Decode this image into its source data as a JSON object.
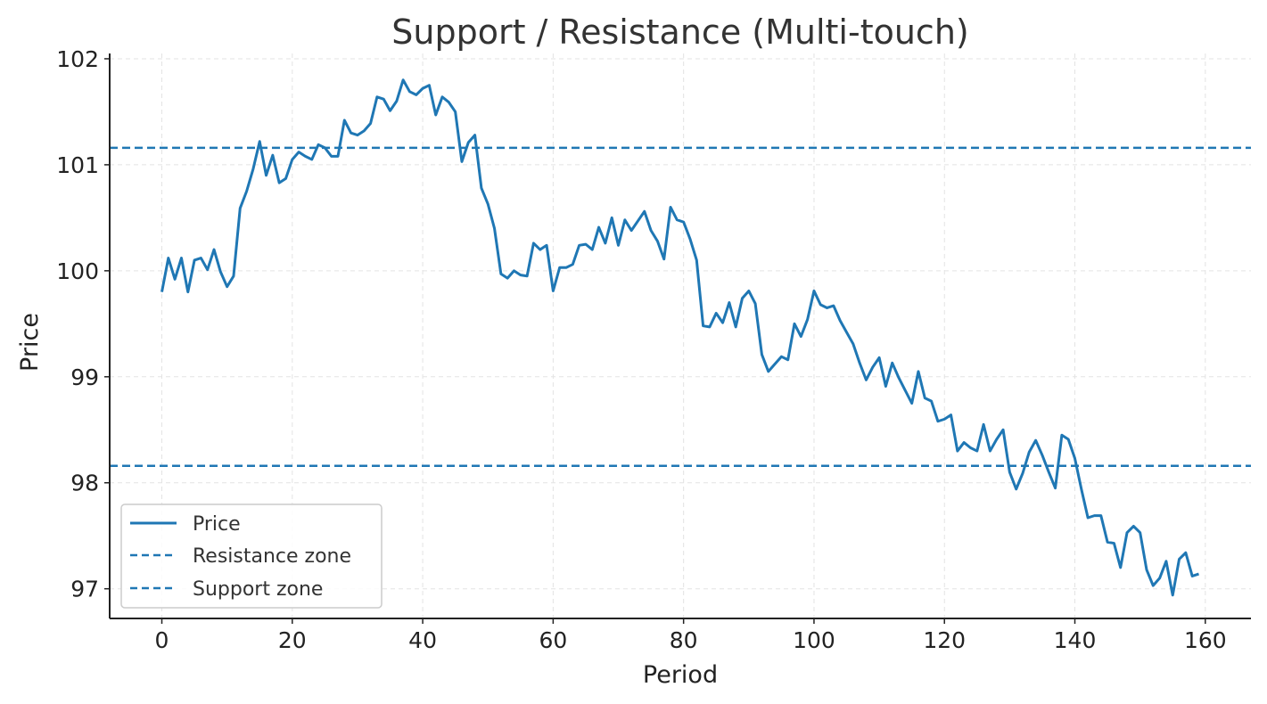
{
  "chart_data": {
    "type": "line",
    "title": "Support / Resistance (Multi-touch)",
    "xlabel": "Period",
    "ylabel": "Price",
    "xlim": [
      -8,
      167
    ],
    "ylim": [
      96.72,
      102.05
    ],
    "xticks": [
      0,
      20,
      40,
      60,
      80,
      100,
      120,
      140,
      160
    ],
    "yticks": [
      97,
      98,
      99,
      100,
      101,
      102
    ],
    "grid": true,
    "legend_position": "lower-left",
    "series": [
      {
        "name": "Price",
        "style": "solid",
        "color": "#1f77b4",
        "x": [
          0,
          1,
          2,
          3,
          4,
          5,
          6,
          7,
          8,
          9,
          10,
          11,
          12,
          13,
          14,
          15,
          16,
          17,
          18,
          19,
          20,
          21,
          22,
          23,
          24,
          25,
          26,
          27,
          28,
          29,
          30,
          31,
          32,
          33,
          34,
          35,
          36,
          37,
          38,
          39,
          40,
          41,
          42,
          43,
          44,
          45,
          46,
          47,
          48,
          49,
          50,
          51,
          52,
          53,
          54,
          55,
          56,
          57,
          58,
          59,
          60,
          61,
          62,
          63,
          64,
          65,
          66,
          67,
          68,
          69,
          70,
          71,
          72,
          73,
          74,
          75,
          76,
          77,
          78,
          79,
          80,
          81,
          82,
          83,
          84,
          85,
          86,
          87,
          88,
          89,
          90,
          91,
          92,
          93,
          94,
          95,
          96,
          97,
          98,
          99,
          100,
          101,
          102,
          103,
          104,
          105,
          106,
          107,
          108,
          109,
          110,
          111,
          112,
          113,
          114,
          115,
          116,
          117,
          118,
          119,
          120,
          121,
          122,
          123,
          124,
          125,
          126,
          127,
          128,
          129,
          130,
          131,
          132,
          133,
          134,
          135,
          136,
          137,
          138,
          139,
          140,
          141,
          142,
          143,
          144,
          145,
          146,
          147,
          148,
          149,
          150,
          151,
          152,
          153,
          154,
          155,
          156,
          157,
          158,
          159
        ],
        "y": [
          99.8,
          100.12,
          99.92,
          100.12,
          99.8,
          100.1,
          100.12,
          100.01,
          100.2,
          99.99,
          99.85,
          99.95,
          100.59,
          100.75,
          100.96,
          101.22,
          100.9,
          101.09,
          100.83,
          100.87,
          101.05,
          101.12,
          101.08,
          101.05,
          101.19,
          101.16,
          101.08,
          101.08,
          101.42,
          101.3,
          101.28,
          101.32,
          101.39,
          101.64,
          101.62,
          101.51,
          101.6,
          101.8,
          101.69,
          101.66,
          101.72,
          101.75,
          101.47,
          101.64,
          101.59,
          101.5,
          101.03,
          101.21,
          101.28,
          100.78,
          100.63,
          100.4,
          99.97,
          99.93,
          100.0,
          99.96,
          99.95,
          100.26,
          100.2,
          100.24,
          99.81,
          100.03,
          100.03,
          100.06,
          100.24,
          100.25,
          100.2,
          100.41,
          100.26,
          100.5,
          100.24,
          100.48,
          100.38,
          100.47,
          100.56,
          100.38,
          100.28,
          100.11,
          100.6,
          100.48,
          100.46,
          100.3,
          100.1,
          99.48,
          99.47,
          99.6,
          99.51,
          99.7,
          99.47,
          99.74,
          99.81,
          99.69,
          99.21,
          99.05,
          99.12,
          99.19,
          99.16,
          99.5,
          99.38,
          99.54,
          99.81,
          99.68,
          99.65,
          99.67,
          99.53,
          99.42,
          99.31,
          99.13,
          98.97,
          99.09,
          99.18,
          98.91,
          99.13,
          98.99,
          98.87,
          98.75,
          99.05,
          98.8,
          98.77,
          98.58,
          98.6,
          98.64,
          98.3,
          98.38,
          98.33,
          98.3,
          98.55,
          98.3,
          98.41,
          98.5,
          98.1,
          97.94,
          98.09,
          98.29,
          98.4,
          98.26,
          98.1,
          97.95,
          98.45,
          98.41,
          98.23,
          97.94,
          97.67,
          97.69,
          97.69,
          97.44,
          97.43,
          97.2,
          97.53,
          97.59,
          97.53,
          97.18,
          97.03,
          97.1,
          97.26,
          96.94,
          97.28,
          97.34,
          97.12,
          97.14
        ]
      },
      {
        "name": "Resistance zone",
        "style": "dashed",
        "color": "#1f77b4",
        "y": 101.16
      },
      {
        "name": "Support zone",
        "style": "dashed",
        "color": "#1f77b4",
        "y": 98.16
      }
    ]
  }
}
